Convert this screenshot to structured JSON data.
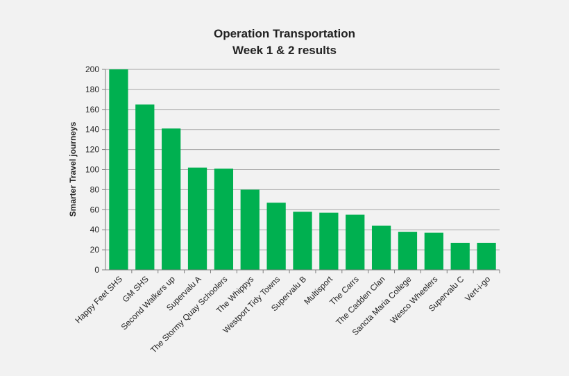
{
  "chart_data": {
    "type": "bar",
    "title": [
      "Operation Transportation",
      "Week 1 & 2 results"
    ],
    "xlabel": "",
    "ylabel": "Smarter Travel journeys",
    "ylim": [
      0,
      200
    ],
    "ytick_step": 20,
    "grid": true,
    "bar_color": "#00b050",
    "categories": [
      "Happy Feet SHS",
      "GM SHS",
      "Second Walkers up",
      "Supervalu A",
      "The Stormy Quay Schoolers",
      "The Whippys",
      "Westport Tidy Towns",
      "Supervalu B",
      "Multisport",
      "The Carrs",
      "The Cadden Clan",
      "Sancta Maria College",
      "Wesco Wheelers",
      "Supervalu C",
      "Vert-i-go"
    ],
    "values": [
      200,
      165,
      141,
      102,
      101,
      80,
      67,
      58,
      57,
      55,
      44,
      38,
      37,
      27,
      27
    ]
  }
}
